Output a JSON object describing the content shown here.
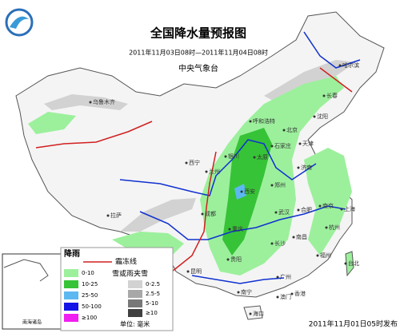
{
  "title": "全国降水量预报图",
  "subtitle": "2011年11月03日08时—2011年11月04日08时",
  "issuer": "中央气象台",
  "published": "2011年11月01日05时发布",
  "inset_label": "南海诸岛",
  "legend": {
    "rain_title": "降雨",
    "frost_line": "霜冻线",
    "snow_title": "雪或雨夹雪",
    "unit": "单位: 毫米",
    "rain_items": [
      {
        "label": "0-10",
        "color": "#9cf09c"
      },
      {
        "label": "10-25",
        "color": "#37c337"
      },
      {
        "label": "25-50",
        "color": "#5cb8f0"
      },
      {
        "label": "50-100",
        "color": "#1414e6"
      },
      {
        "label": "≥100",
        "color": "#f01ef0"
      }
    ],
    "snow_items": [
      {
        "label": "0-2.5",
        "color": "#d2d2d2"
      },
      {
        "label": "2.5-5",
        "color": "#a8a8a8"
      },
      {
        "label": "5-10",
        "color": "#787878"
      },
      {
        "label": "≥10",
        "color": "#404040"
      }
    ]
  },
  "cities": [
    "乌鲁木齐",
    "哈尔滨",
    "长春",
    "沈阳",
    "呼和浩特",
    "北京",
    "天津",
    "石家庄",
    "太原",
    "济南",
    "银川",
    "西宁",
    "兰州",
    "郑州",
    "西安",
    "合肥",
    "南京",
    "上海",
    "武汉",
    "杭州",
    "拉萨",
    "成都",
    "重庆",
    "长沙",
    "南昌",
    "贵阳",
    "福州",
    "台北",
    "昆明",
    "广州",
    "南宁",
    "香港",
    "澳门",
    "海口"
  ]
}
